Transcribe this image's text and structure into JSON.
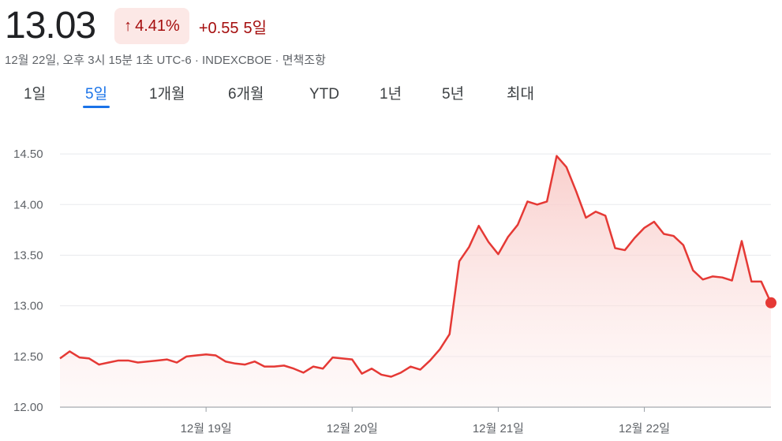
{
  "header": {
    "price": "13.03",
    "change_percent": "4.41%",
    "change_absolute": "+0.55",
    "change_period": "5일",
    "meta": "12월 22일, 오후 3시 15분 1초 UTC-6 · INDEXCBOE · 면책조항",
    "up_arrow_icon": "arrow-up-icon"
  },
  "colors": {
    "accent": "#1a73e8",
    "negative_text": "#a50e0e",
    "badge_bg": "#fce8e6",
    "line": "#e53935",
    "fill": "#f8c9c6"
  },
  "tabs": [
    {
      "label": "1일",
      "active": false
    },
    {
      "label": "5일",
      "active": true
    },
    {
      "label": "1개월",
      "active": false
    },
    {
      "label": "6개월",
      "active": false
    },
    {
      "label": "YTD",
      "active": false
    },
    {
      "label": "1년",
      "active": false
    },
    {
      "label": "5년",
      "active": false
    },
    {
      "label": "최대",
      "active": false
    }
  ],
  "chart_data": {
    "type": "area",
    "title": "",
    "xlabel": "",
    "ylabel": "",
    "ylim": [
      12.0,
      14.75
    ],
    "yticks": [
      "12.00",
      "12.50",
      "13.00",
      "13.50",
      "14.00",
      "14.50"
    ],
    "ytick_values": [
      12.0,
      12.5,
      13.0,
      13.5,
      14.0,
      14.5
    ],
    "xticks": [
      {
        "label": "12월 19일",
        "index": 15
      },
      {
        "label": "12월 20일",
        "index": 30
      },
      {
        "label": "12월 21일",
        "index": 45
      },
      {
        "label": "12월 22일",
        "index": 60
      }
    ],
    "grid": true,
    "last_point_marker": true,
    "series": [
      {
        "values": [
          12.48,
          12.55,
          12.49,
          12.48,
          12.42,
          12.44,
          12.46,
          12.46,
          12.44,
          12.45,
          12.46,
          12.47,
          12.44,
          12.5,
          12.51,
          12.52,
          12.51,
          12.45,
          12.43,
          12.42,
          12.45,
          12.4,
          12.4,
          12.41,
          12.38,
          12.34,
          12.4,
          12.38,
          12.49,
          12.48,
          12.47,
          12.33,
          12.38,
          12.32,
          12.3,
          12.34,
          12.4,
          12.37,
          12.46,
          12.57,
          12.72,
          13.44,
          13.58,
          13.79,
          13.63,
          13.51,
          13.68,
          13.8,
          14.03,
          14.0,
          14.03,
          14.48,
          14.37,
          14.13,
          13.87,
          13.93,
          13.89,
          13.57,
          13.55,
          13.67,
          13.77,
          13.83,
          13.71,
          13.69,
          13.6,
          13.35,
          13.26,
          13.29,
          13.28,
          13.25,
          13.64,
          13.24,
          13.24,
          13.03
        ]
      }
    ]
  }
}
